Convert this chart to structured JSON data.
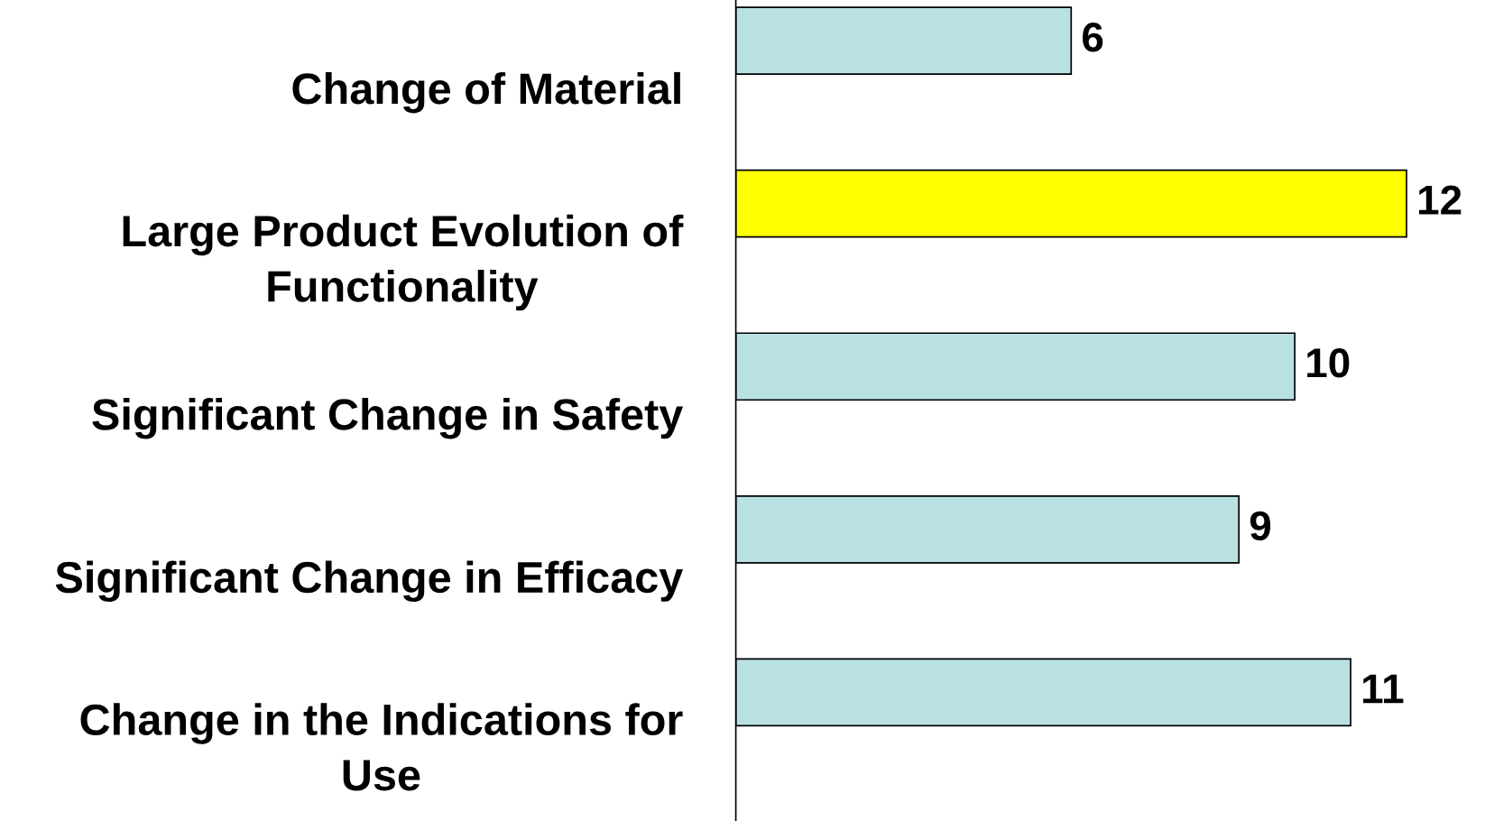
{
  "chart_data": {
    "type": "bar",
    "orientation": "horizontal",
    "categories": [
      "Change of Material",
      "Large Product Evolution of\nFunctionality",
      "Significant Change in Safety",
      "Significant Change in Efficacy",
      "Change in the Indications for\nUse"
    ],
    "values": [
      6,
      12,
      10,
      9,
      11
    ],
    "colors": [
      "#b9e1e3",
      "#ffff00",
      "#b9e1e3",
      "#b9e1e3",
      "#b9e1e3"
    ],
    "data_labels": true,
    "tick_labels": "y",
    "grid": false,
    "legend": false
  }
}
